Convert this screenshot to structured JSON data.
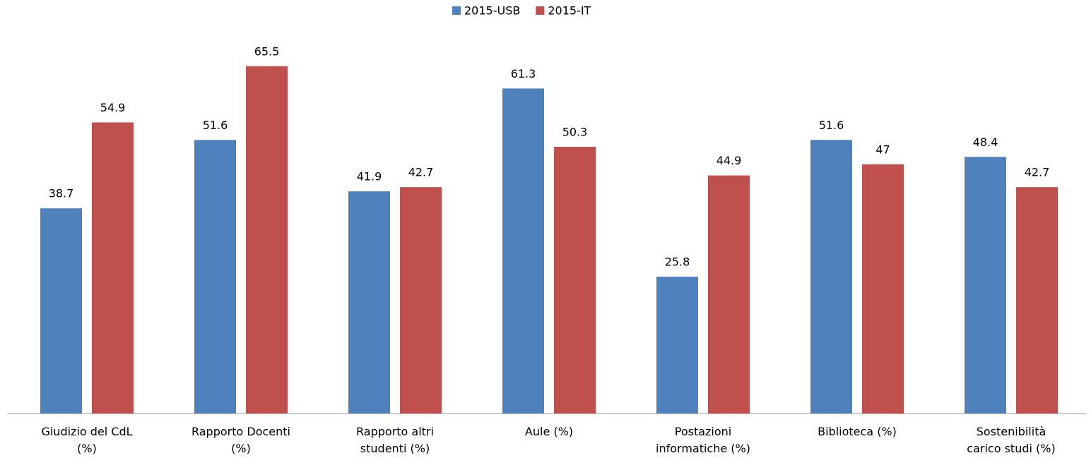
{
  "chart_data": {
    "type": "bar",
    "categories": [
      "Giudizio del CdL\n(%)",
      "Rapporto Docenti\n(%)",
      "Rapporto altri\nstudenti (%)",
      "Aule (%)",
      "Postazioni\ninformatiche (%)",
      "Biblioteca (%)",
      "Sostenibilità\ncarico studi (%)"
    ],
    "series": [
      {
        "name": "2015-USB",
        "color": "#4f81bd",
        "values": [
          38.7,
          51.6,
          41.9,
          61.3,
          25.8,
          51.6,
          48.4
        ]
      },
      {
        "name": "2015-IT",
        "color": "#c0504d",
        "values": [
          54.9,
          65.5,
          42.7,
          50.3,
          44.9,
          47,
          42.7
        ]
      }
    ],
    "ylim": [
      0,
      70
    ],
    "legend": "top"
  }
}
